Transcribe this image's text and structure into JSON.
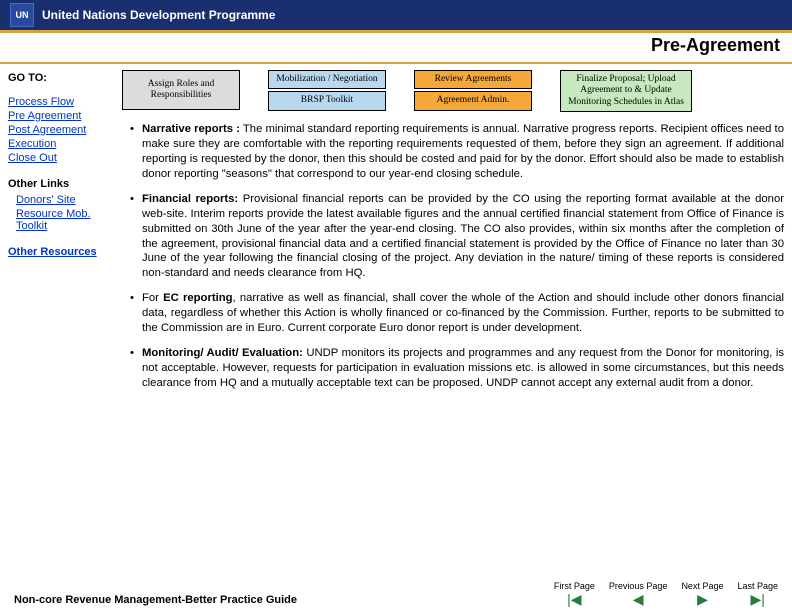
{
  "header": {
    "org": "United Nations Development Programme",
    "page_title": "Pre-Agreement"
  },
  "sidebar": {
    "goto_label": "GO TO:",
    "nav": [
      "Process Flow",
      "Pre Agreement",
      "Post Agreement",
      "Execution",
      "Close Out"
    ],
    "other_links_label": "Other Links",
    "other_links": [
      "Donors' Site",
      "Resource Mob. Toolkit"
    ],
    "other_resources_label": "Other Resources"
  },
  "steps": {
    "col1": {
      "box": "Assign Roles and Responsibilities",
      "color": "#dcdcdc"
    },
    "col2": {
      "top": "Mobilization / Negotiation",
      "bottom": "BRSP Toolkit",
      "color": "#b8d8f0"
    },
    "col3": {
      "top": "Review Agreements",
      "bottom": "Agreement Admin.",
      "color": "#f5a739"
    },
    "col4": {
      "box": "Finalize Proposal; Upload Agreement to & Update Monitoring Schedules in Atlas",
      "color": "#c8e8c0"
    }
  },
  "bullets": [
    {
      "lead": "Narrative reports :",
      "text": " The minimal standard reporting requirements is annual. Narrative progress reports. Recipient offices need to make sure they are comfortable with the reporting requirements requested of them, before they sign an agreement. If additional reporting is requested by the donor, then this should be costed and paid for by the donor. Effort should also be made to establish donor reporting \"seasons\" that correspond to our year-end closing schedule."
    },
    {
      "lead": "Financial reports:",
      "text": " Provisional financial reports can be provided by the CO using the reporting format available at the donor web-site. Interim reports provide the latest available figures and the annual certified financial statement from Office of Finance is submitted on 30th June of the year after the year-end closing. The CO also provides, within six months after the completion of the agreement, provisional financial data and a certified financial statement is provided by the Office of Finance no later than 30 June of the year following the financial closing of the project. Any deviation in the nature/ timing of these reports is considered non-standard and needs clearance from HQ."
    },
    {
      "lead": "",
      "text": "For <b>EC reporting</b>, narrative as well as financial, shall cover the whole of the Action and should include other donors financial data, regardless of whether this Action is wholly financed or co-financed by the Commission. Further, reports to be submitted to the Commission are in Euro. Current corporate Euro donor report is under development."
    },
    {
      "lead": "Monitoring/ Audit/ Evaluation:",
      "text": " UNDP monitors its projects and programmes and any request from the Donor for monitoring, is not acceptable. However, requests for participation in evaluation missions etc. is allowed in some circumstances, but this needs clearance from HQ and a mutually acceptable text can be proposed. UNDP cannot accept any external audit from a donor."
    }
  ],
  "footer": {
    "guide": "Non-core Revenue Management-Better Practice Guide",
    "nav": [
      "First Page",
      "Previous Page",
      "Next Page",
      "Last Page"
    ]
  }
}
